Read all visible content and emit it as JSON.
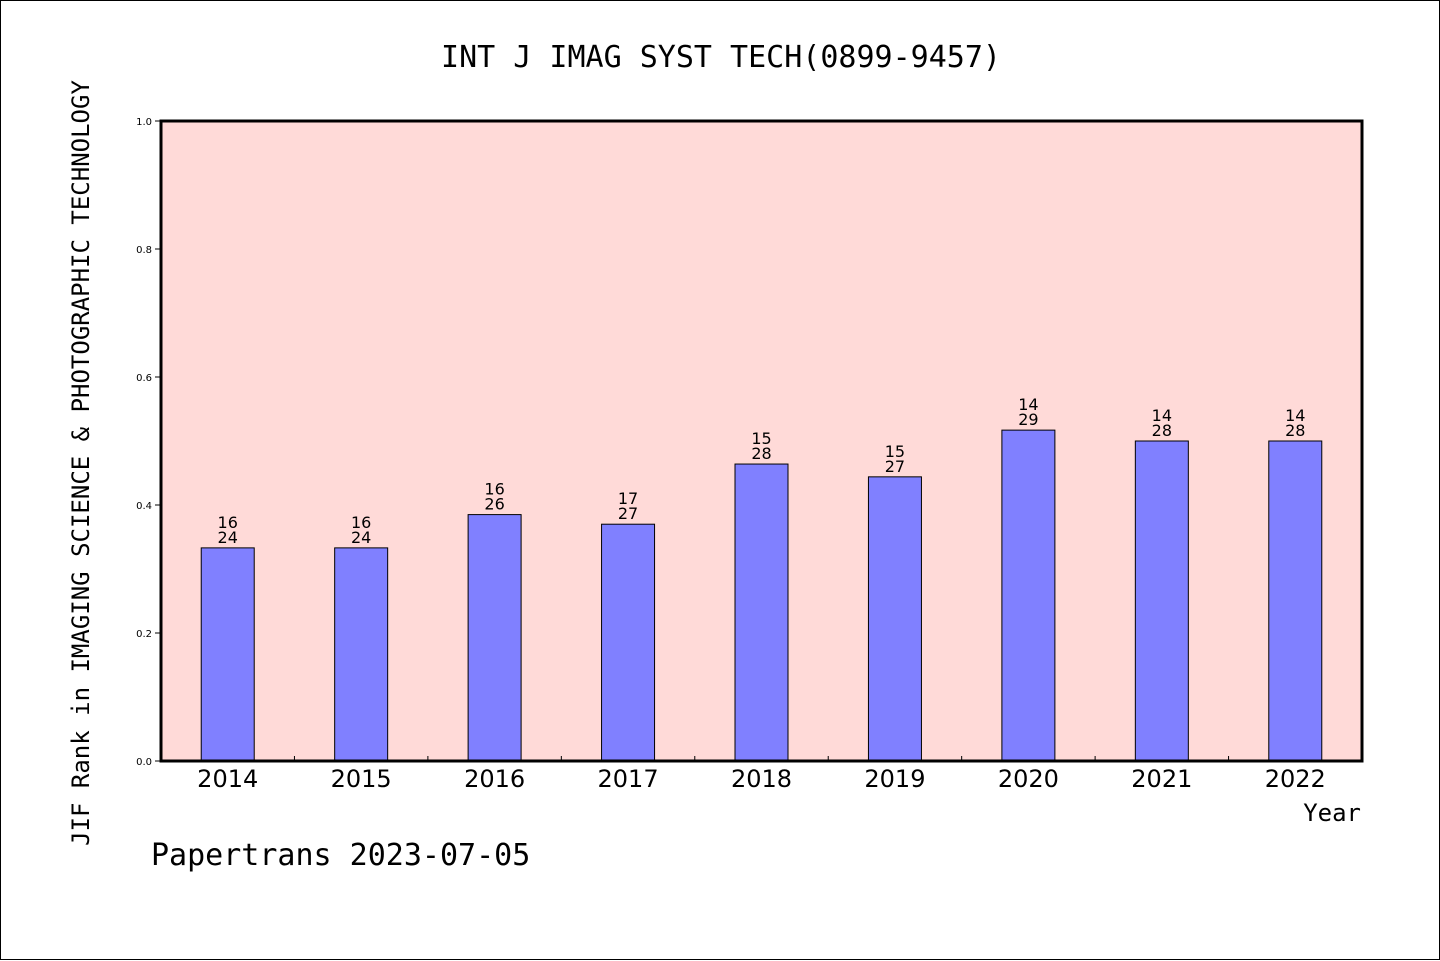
{
  "chart_data": {
    "type": "bar",
    "title": "INT J IMAG SYST TECH(0899-9457)",
    "ylabel": "JIF Rank in IMAGING SCIENCE & PHOTOGRAPHIC TECHNOLOGY",
    "xlabel": "Year",
    "ylim": [
      0,
      1.0
    ],
    "yticks": [
      "0.0",
      "0.2",
      "0.4",
      "0.6",
      "0.8",
      "1.0"
    ],
    "categories": [
      "2014",
      "2015",
      "2016",
      "2017",
      "2018",
      "2019",
      "2020",
      "2021",
      "2022"
    ],
    "values": [
      0.333,
      0.333,
      0.385,
      0.37,
      0.464,
      0.444,
      0.517,
      0.5,
      0.5
    ],
    "rank": [
      "16",
      "16",
      "16",
      "17",
      "15",
      "15",
      "14",
      "14",
      "14"
    ],
    "total": [
      "24",
      "24",
      "26",
      "27",
      "28",
      "27",
      "29",
      "28",
      "28"
    ],
    "grid": false,
    "colors": {
      "plot_bg": "#ffdad8",
      "bar": "#8080ff"
    }
  },
  "footer": "Papertrans 2023-07-05"
}
